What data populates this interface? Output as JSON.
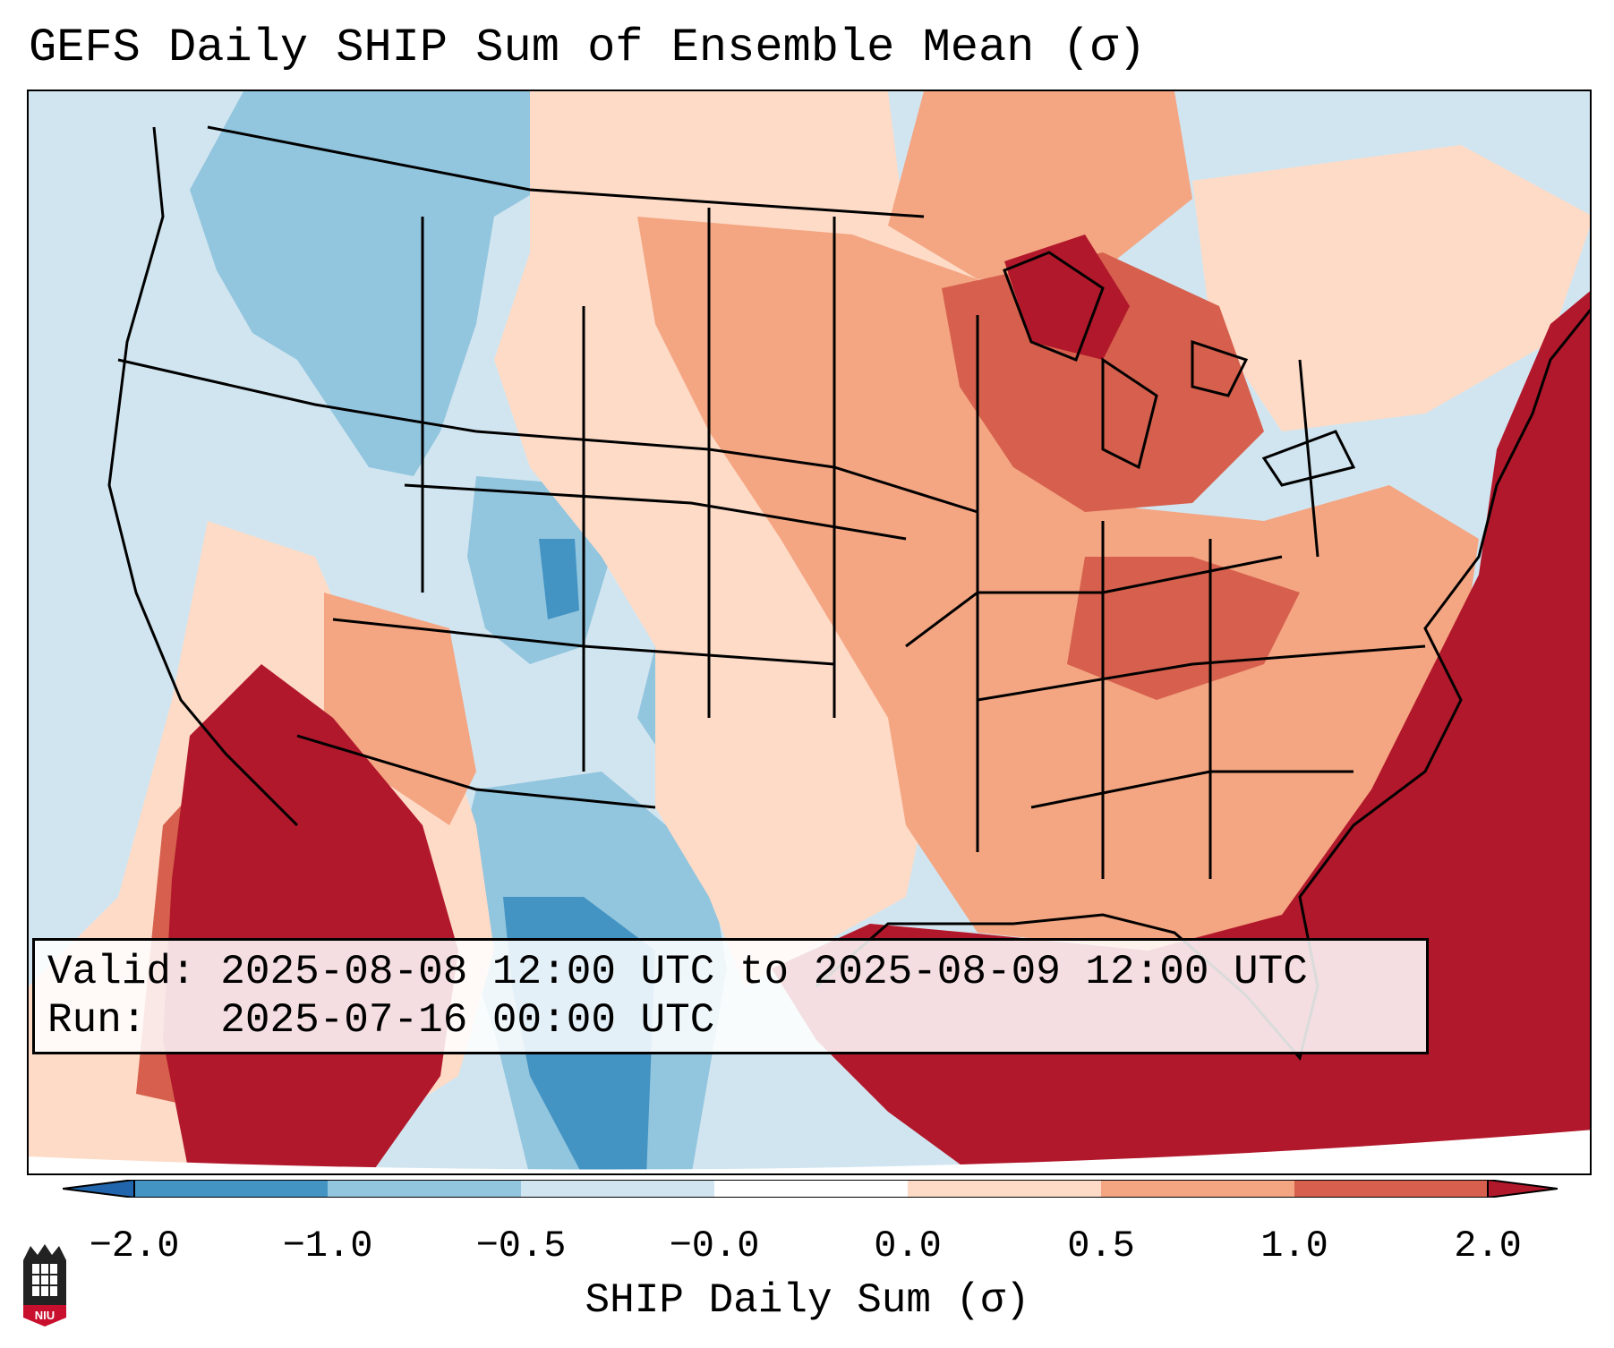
{
  "title": "GEFS Daily SHIP Sum of Ensemble Mean (σ)",
  "info": {
    "valid_label": "Valid:",
    "valid_value": "2025-08-08 12:00 UTC to 2025-08-09 12:00 UTC",
    "run_label": "Run:",
    "run_value": "2025-07-16 00:00 UTC"
  },
  "colorbar": {
    "label": "SHIP Daily Sum (σ)",
    "ticks": [
      "−2.0",
      "−1.0",
      "−0.5",
      "−0.0",
      "0.0",
      "0.5",
      "1.0",
      "2.0"
    ],
    "colors": [
      "#4393c3",
      "#92c5de",
      "#d1e5f0",
      "#ffffff",
      "#fddbc7",
      "#f4a582",
      "#d6604d",
      "#b2182b"
    ],
    "under_color": "#2166ac",
    "over_color": "#b2182b"
  },
  "map": {
    "colors": {
      "strong_blue": "#4393c3",
      "mid_blue": "#92c5de",
      "light_blue": "#d1e5f0",
      "light_red": "#fddbc7",
      "mid_red": "#f4a582",
      "red": "#d6604d",
      "dark_red": "#b2182b"
    }
  },
  "logo": {
    "text": "NIU",
    "icon": "niu-logo-icon"
  }
}
